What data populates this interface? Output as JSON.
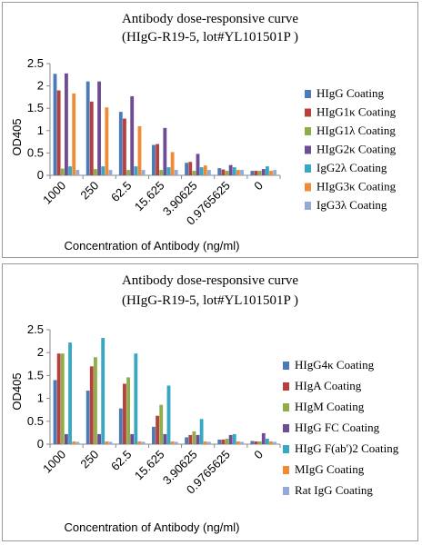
{
  "colors": {
    "blue": "#4a7ab8",
    "red": "#b8403c",
    "green": "#8fae4a",
    "purple": "#6e4d96",
    "teal": "#37a8c4",
    "orange": "#f08a34",
    "lightblue": "#93a9d6"
  },
  "chart_data": [
    {
      "type": "bar",
      "title": "Antibody dose-responsive curve",
      "subtitle": "(HIgG-R19-5, lot#YL101501P )",
      "xlabel": "Concentration of Antibody (ng/ml)",
      "ylabel": "OD405",
      "ylim": [
        0,
        2.5
      ],
      "yticks": [
        "0",
        "0.5",
        "1",
        "1.5",
        "2",
        "2.5"
      ],
      "grid": false,
      "legend_position": "right",
      "categories": [
        "1000",
        "250",
        "62.5",
        "15.625",
        "3.90625",
        "0.9765625",
        "0"
      ],
      "series": [
        {
          "name": "HIgG Coating",
          "color": "#4a7ab8",
          "values": [
            2.27,
            2.1,
            1.42,
            0.68,
            0.28,
            0.16,
            0.1
          ]
        },
        {
          "name": "HIgG1κ Coating",
          "color": "#b8403c",
          "values": [
            1.9,
            1.65,
            1.27,
            0.7,
            0.3,
            0.13,
            0.1
          ]
        },
        {
          "name": "HIgG1λ Coating",
          "color": "#8fae4a",
          "values": [
            0.15,
            0.14,
            0.12,
            0.12,
            0.1,
            0.1,
            0.1
          ]
        },
        {
          "name": "HIgG2κ Coating",
          "color": "#6e4d96",
          "values": [
            2.28,
            2.1,
            1.77,
            1.06,
            0.48,
            0.23,
            0.14
          ]
        },
        {
          "name": "IgG2λ Coating",
          "color": "#37a8c4",
          "values": [
            0.2,
            0.2,
            0.2,
            0.18,
            0.18,
            0.18,
            0.2
          ]
        },
        {
          "name": "HIgG3κ Coating",
          "color": "#f08a34",
          "values": [
            1.83,
            1.52,
            1.1,
            0.52,
            0.22,
            0.12,
            0.1
          ]
        },
        {
          "name": "IgG3λ Coating",
          "color": "#93a9d6",
          "values": [
            0.12,
            0.12,
            0.12,
            0.12,
            0.12,
            0.12,
            0.12
          ]
        }
      ]
    },
    {
      "type": "bar",
      "title": "Antibody dose-responsive curve",
      "subtitle": "(HIgG-R19-5, lot#YL101501P )",
      "xlabel": "Concentration of Antibody (ng/ml)",
      "ylabel": "OD405",
      "ylim": [
        0,
        2.5
      ],
      "yticks": [
        "0",
        "0.5",
        "1",
        "1.5",
        "2",
        "2.5"
      ],
      "grid": false,
      "legend_position": "right",
      "categories": [
        "1000",
        "250",
        "62.5",
        "15.625",
        "3.90625",
        "0.9765625",
        "0"
      ],
      "series": [
        {
          "name": "HIgG4κ Coating",
          "color": "#4a7ab8",
          "values": [
            1.4,
            1.17,
            0.78,
            0.38,
            0.15,
            0.1,
            0.07
          ]
        },
        {
          "name": "HIgA Coating",
          "color": "#b8403c",
          "values": [
            1.98,
            1.7,
            1.32,
            0.62,
            0.2,
            0.1,
            0.06
          ]
        },
        {
          "name": "HIgM Coating",
          "color": "#8fae4a",
          "values": [
            1.98,
            1.9,
            1.46,
            0.86,
            0.28,
            0.12,
            0.06
          ]
        },
        {
          "name": "HIgG FC Coating",
          "color": "#6e4d96",
          "values": [
            0.22,
            0.22,
            0.22,
            0.22,
            0.2,
            0.2,
            0.24
          ]
        },
        {
          "name": "HIgG F(ab')2 Coating",
          "color": "#37a8c4",
          "values": [
            2.22,
            2.32,
            1.98,
            1.28,
            0.55,
            0.22,
            0.12
          ]
        },
        {
          "name": "MIgG Coating",
          "color": "#f08a34",
          "values": [
            0.06,
            0.06,
            0.06,
            0.06,
            0.06,
            0.06,
            0.06
          ]
        },
        {
          "name": "Rat IgG Coating",
          "color": "#93a9d6",
          "values": [
            0.05,
            0.05,
            0.05,
            0.05,
            0.05,
            0.05,
            0.05
          ]
        }
      ]
    }
  ]
}
